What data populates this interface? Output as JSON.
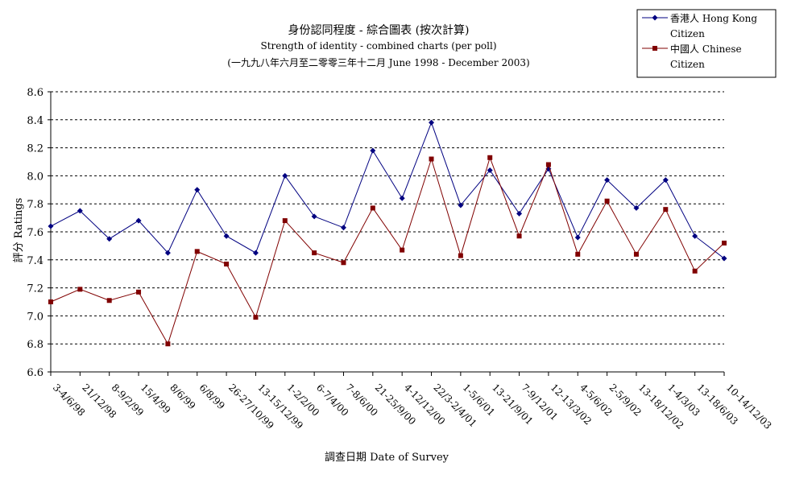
{
  "chart_data": {
    "type": "line",
    "title": "身份認同程度 - 綜合圖表 (按次計算)",
    "subtitle": "Strength of identity -  combined charts (per poll)",
    "subtitle2": "(一九九八年六月至二零零三年十二月 June 1998 - December 2003)",
    "xlabel": "調查日期 Date of Survey",
    "ylabel": "評分 Ratings",
    "ylim": [
      6.6,
      8.6
    ],
    "yticks": [
      "8.6",
      "8.4",
      "8.2",
      "8.0",
      "7.8",
      "7.6",
      "7.4",
      "7.2",
      "7.0",
      "6.8",
      "6.6"
    ],
    "grid": true,
    "legend_position": "top-right",
    "categories": [
      "3-4/6/98",
      "21/12/98",
      "8-9/2/99",
      "15/4/99",
      "8/6/99",
      "6/8/99",
      "26-27/10/99",
      "13-15/12/99",
      "1-2/2/00",
      "6-7/4/00",
      "7-8/6/00",
      "21-25/9/00",
      "4-12/12/00",
      "22/3-2/4/01",
      "1-5/6/01",
      "13-21/9/01",
      "7-9/12/01",
      "12-13/3/02",
      "4-5/6/02",
      "2-5/9/02",
      "13-18/12/02",
      "1-4/3/03",
      "13-18/6/03",
      "10-14/12/03"
    ],
    "series": [
      {
        "name": "香港人 Hong Kong Citizen",
        "legend_lines": [
          "香港人 Hong Kong",
          "Citizen"
        ],
        "color": "#000080",
        "marker": "diamond",
        "values": [
          7.64,
          7.75,
          7.55,
          7.68,
          7.45,
          7.9,
          7.57,
          7.45,
          8.0,
          7.71,
          7.63,
          8.18,
          7.84,
          8.38,
          7.79,
          8.04,
          7.73,
          8.05,
          7.56,
          7.97,
          7.77,
          7.97,
          7.57,
          7.41
        ]
      },
      {
        "name": "中國人 Chinese Citizen",
        "legend_lines": [
          "中國人 Chinese",
          "Citizen"
        ],
        "color": "#800000",
        "marker": "square",
        "values": [
          7.1,
          7.19,
          7.11,
          7.17,
          6.8,
          7.46,
          7.37,
          6.99,
          7.68,
          7.45,
          7.38,
          7.77,
          7.47,
          8.12,
          7.43,
          8.13,
          7.57,
          8.08,
          7.44,
          7.82,
          7.44,
          7.76,
          7.32,
          7.52
        ]
      }
    ]
  }
}
